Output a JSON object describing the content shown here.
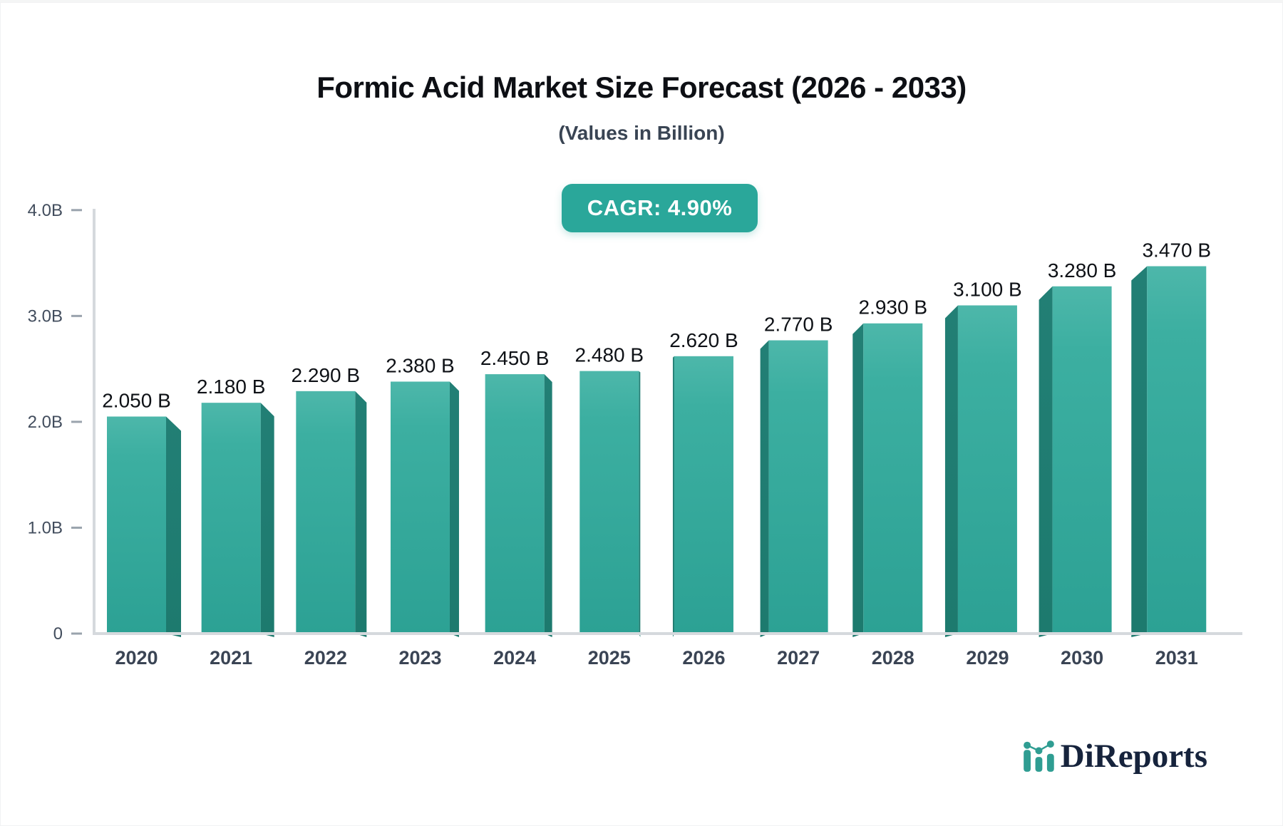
{
  "page": {
    "background": "#ffffff",
    "accent_teal": "#2aa79a"
  },
  "header": {
    "title": "Formic Acid Market Size Forecast (2026 - 2033)",
    "subtitle": "(Values in Billion)",
    "cagr_label": "CAGR: 4.90%"
  },
  "chart_data": {
    "type": "bar",
    "style": "3d-perspective-bars",
    "title": "Formic Acid Market Size Forecast (2026 - 2033)",
    "subtitle": "(Values in Billion)",
    "cagr": "4.90%",
    "unit": "Billion",
    "categories": [
      "2020",
      "2021",
      "2022",
      "2023",
      "2024",
      "2025",
      "2026",
      "2027",
      "2028",
      "2029",
      "2030",
      "2031"
    ],
    "values": [
      2.05,
      2.18,
      2.29,
      2.38,
      2.45,
      2.48,
      2.62,
      2.77,
      2.93,
      3.1,
      3.28,
      3.47
    ],
    "value_labels": [
      "2.050 B",
      "2.180 B",
      "2.290 B",
      "2.380 B",
      "2.450 B",
      "2.480 B",
      "2.620 B",
      "2.770 B",
      "2.930 B",
      "3.100 B",
      "3.280 B",
      "3.470 B"
    ],
    "xlabel": "",
    "ylabel": "",
    "ylim": [
      0,
      4.0
    ],
    "y_ticks": [
      {
        "label": "4.0B",
        "value": 4.0
      },
      {
        "label": "3.0B",
        "value": 3.0
      },
      {
        "label": "2.0B",
        "value": 2.0
      },
      {
        "label": "1.0B",
        "value": 1.0
      },
      {
        "label": "0",
        "value": 0.0
      }
    ],
    "grid": false,
    "legend": "none",
    "colors": {
      "bar_face_top": "#4db7aa",
      "bar_face_bottom": "#2ca194",
      "bar_side": "#1f7f73",
      "axis_line": "#d5d9dd",
      "tick_mark": "#9aa3ad",
      "tick_label": "#424d5d",
      "category_label": "#3a4454",
      "value_label": "#0e1116"
    }
  },
  "logo": {
    "text": "DiReports",
    "icon": "bar-chart-logo-icon",
    "icon_color": "#2f9d92",
    "text_color": "#16233c"
  }
}
